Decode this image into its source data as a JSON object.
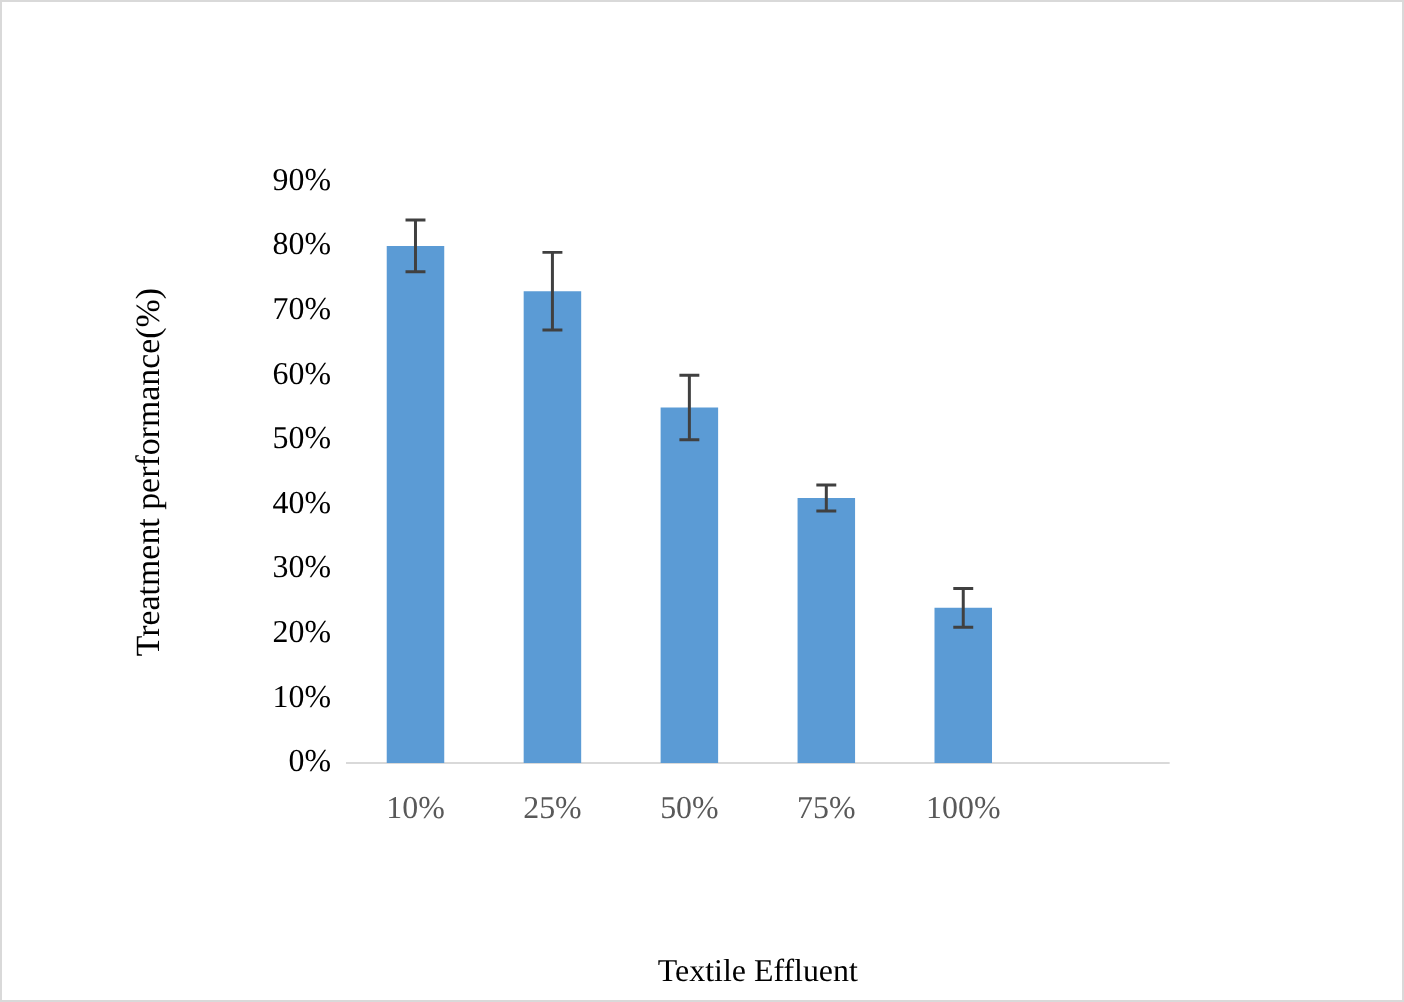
{
  "chart_data": {
    "type": "bar",
    "xlabel": "Textile Effluent",
    "ylabel": "Treatment performance(%)",
    "categories": [
      "10%",
      "25%",
      "50%",
      "75%",
      "100%",
      null
    ],
    "values": [
      80,
      73,
      55,
      41,
      24,
      null
    ],
    "errors": [
      [
        76,
        84
      ],
      [
        67,
        79
      ],
      [
        50,
        60
      ],
      [
        39,
        43
      ],
      [
        21,
        27
      ],
      null
    ],
    "color": "#5b9bd5",
    "ylim": [
      0,
      90
    ],
    "yticks": [
      {
        "value": 0,
        "label": "0%"
      },
      {
        "value": 10,
        "label": "10%"
      },
      {
        "value": 20,
        "label": "20%"
      },
      {
        "value": 30,
        "label": "30%"
      },
      {
        "value": 40,
        "label": "40%"
      },
      {
        "value": 50,
        "label": "50%"
      },
      {
        "value": 60,
        "label": "60%"
      },
      {
        "value": 70,
        "label": "70%"
      },
      {
        "value": 80,
        "label": "80%"
      },
      {
        "value": 90,
        "label": "90%"
      }
    ],
    "grid": false,
    "legend": false
  }
}
